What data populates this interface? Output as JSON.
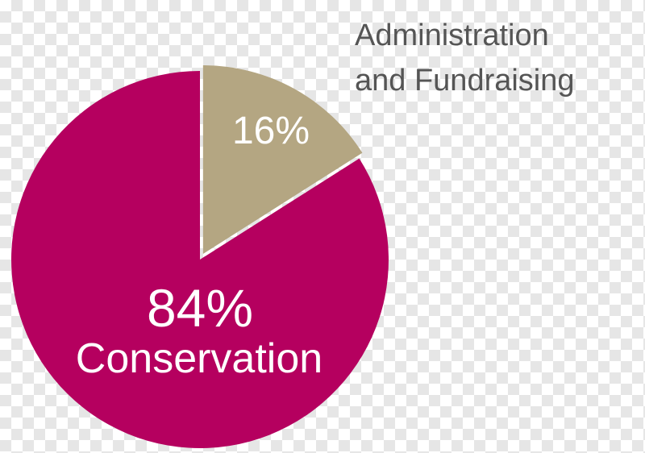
{
  "chart_data": {
    "type": "pie",
    "slices": [
      {
        "label_line1": "84%",
        "label_line2": "Conservation",
        "value": 84,
        "color": "#b5005f"
      },
      {
        "label_line1": "16%",
        "label_line2": "",
        "value": 16,
        "color": "#b4a682"
      }
    ],
    "external_label": {
      "line1": "Administration",
      "line2": "and Fundraising"
    }
  }
}
